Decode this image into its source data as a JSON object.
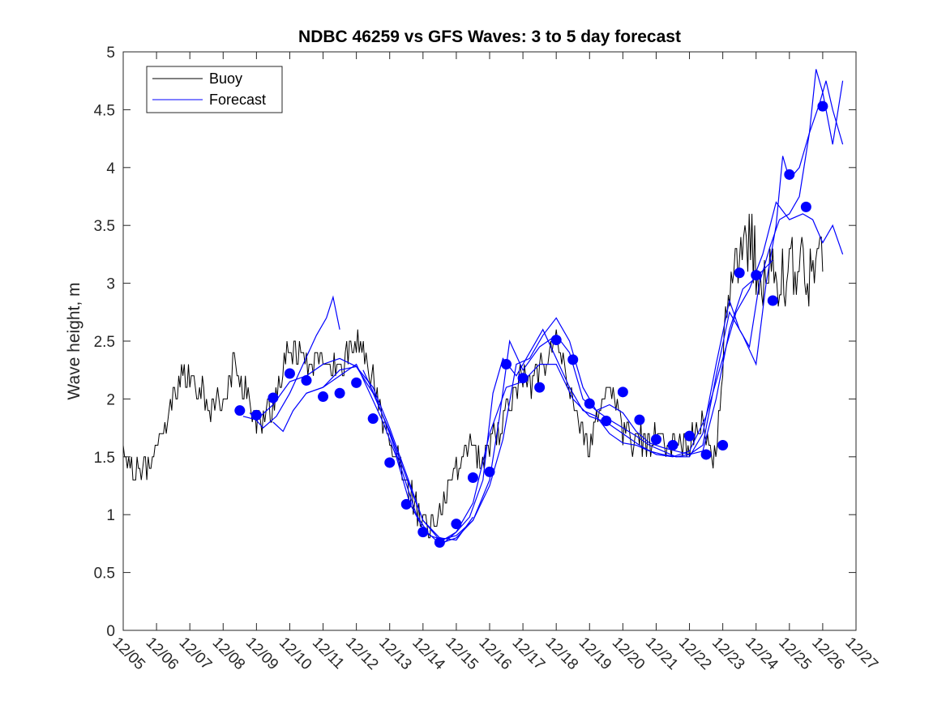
{
  "chart_data": {
    "type": "line",
    "title": "NDBC 46259 vs GFS Waves: 3 to 5 day forecast",
    "xlabel": "",
    "ylabel": "Wave height, m",
    "x_unit": "days since 12/05",
    "xlim": [
      0,
      22
    ],
    "ylim": [
      0,
      5
    ],
    "yticks": [
      0,
      0.5,
      1,
      1.5,
      2,
      2.5,
      3,
      3.5,
      4,
      4.5,
      5
    ],
    "yticklabels": [
      "0",
      "0.5",
      "1",
      "1.5",
      "2",
      "2.5",
      "3",
      "3.5",
      "4",
      "4.5",
      "5"
    ],
    "xticks": [
      0,
      1,
      2,
      3,
      4,
      5,
      6,
      7,
      8,
      9,
      10,
      11,
      12,
      13,
      14,
      15,
      16,
      17,
      18,
      19,
      20,
      21,
      22
    ],
    "xticklabels": [
      "12/05",
      "12/06",
      "12/07",
      "12/08",
      "12/09",
      "12/10",
      "12/11",
      "12/12",
      "12/13",
      "12/14",
      "12/15",
      "12/16",
      "12/17",
      "12/18",
      "12/19",
      "12/20",
      "12/21",
      "12/22",
      "12/23",
      "12/24",
      "12/25",
      "12/26",
      "12/27"
    ],
    "legend": {
      "location": "top-left",
      "entries": [
        "Buoy",
        "Forecast"
      ]
    },
    "colors": {
      "buoy": "#000000",
      "forecast": "#0000ff",
      "axis": "#262626"
    },
    "buoy_anchors": [
      [
        0.0,
        1.5
      ],
      [
        0.3,
        1.4
      ],
      [
        0.6,
        1.35
      ],
      [
        0.9,
        1.45
      ],
      [
        1.2,
        1.7
      ],
      [
        1.5,
        2.0
      ],
      [
        1.8,
        2.2
      ],
      [
        2.1,
        2.15
      ],
      [
        2.4,
        2.05
      ],
      [
        2.7,
        1.9
      ],
      [
        3.0,
        2.05
      ],
      [
        3.3,
        2.3
      ],
      [
        3.6,
        2.15
      ],
      [
        3.9,
        1.85
      ],
      [
        4.2,
        1.85
      ],
      [
        4.5,
        1.95
      ],
      [
        4.8,
        2.3
      ],
      [
        5.0,
        2.45
      ],
      [
        5.3,
        2.4
      ],
      [
        5.6,
        2.3
      ],
      [
        5.9,
        2.25
      ],
      [
        6.2,
        2.3
      ],
      [
        6.5,
        2.2
      ],
      [
        6.8,
        2.45
      ],
      [
        7.0,
        2.5
      ],
      [
        7.3,
        2.35
      ],
      [
        7.5,
        2.15
      ],
      [
        7.7,
        1.9
      ],
      [
        8.0,
        1.7
      ],
      [
        8.3,
        1.45
      ],
      [
        8.6,
        1.2
      ],
      [
        8.9,
        1.0
      ],
      [
        9.2,
        0.92
      ],
      [
        9.5,
        1.0
      ],
      [
        9.8,
        1.2
      ],
      [
        10.1,
        1.4
      ],
      [
        10.4,
        1.65
      ],
      [
        10.7,
        1.45
      ],
      [
        11.0,
        1.55
      ],
      [
        11.3,
        1.75
      ],
      [
        11.6,
        1.95
      ],
      [
        11.9,
        2.2
      ],
      [
        12.2,
        2.1
      ],
      [
        12.5,
        2.25
      ],
      [
        12.8,
        2.4
      ],
      [
        13.1,
        2.45
      ],
      [
        13.4,
        2.1
      ],
      [
        13.7,
        1.7
      ],
      [
        14.0,
        1.6
      ],
      [
        14.3,
        1.85
      ],
      [
        14.6,
        2.1
      ],
      [
        14.9,
        1.8
      ],
      [
        15.2,
        1.65
      ],
      [
        15.5,
        1.7
      ],
      [
        15.8,
        1.55
      ],
      [
        16.1,
        1.75
      ],
      [
        16.4,
        1.6
      ],
      [
        16.7,
        1.65
      ],
      [
        17.0,
        1.6
      ],
      [
        17.3,
        1.85
      ],
      [
        17.6,
        1.55
      ],
      [
        17.8,
        1.5
      ],
      [
        18.0,
        2.3
      ],
      [
        18.2,
        2.9
      ],
      [
        18.5,
        3.2
      ],
      [
        18.8,
        3.4
      ],
      [
        19.1,
        3.0
      ],
      [
        19.4,
        3.2
      ],
      [
        19.7,
        3.1
      ],
      [
        20.0,
        3.05
      ],
      [
        20.3,
        3.25
      ],
      [
        20.6,
        3.1
      ],
      [
        20.9,
        3.3
      ],
      [
        21.0,
        3.0
      ]
    ],
    "forecast_segments": [
      [
        [
          3.6,
          1.85
        ],
        [
          4.0,
          1.82
        ],
        [
          4.5,
          1.95
        ],
        [
          5.0,
          2.15
        ],
        [
          5.5,
          2.2
        ],
        [
          6.0,
          2.3
        ],
        [
          6.5,
          2.35
        ],
        [
          7.0,
          2.28
        ],
        [
          7.5,
          2.05
        ],
        [
          8.0,
          1.72
        ],
        [
          8.5,
          1.32
        ],
        [
          9.0,
          0.95
        ],
        [
          9.5,
          0.8
        ],
        [
          10.0,
          0.78
        ],
        [
          10.5,
          0.98
        ]
      ],
      [
        [
          3.8,
          1.88
        ],
        [
          4.2,
          1.75
        ],
        [
          4.6,
          1.85
        ],
        [
          5.0,
          2.05
        ],
        [
          5.4,
          2.3
        ],
        [
          5.8,
          2.55
        ],
        [
          6.1,
          2.7
        ],
        [
          6.3,
          2.88
        ],
        [
          6.5,
          2.6
        ]
      ],
      [
        [
          4.5,
          1.8
        ],
        [
          4.8,
          1.72
        ],
        [
          5.1,
          1.9
        ],
        [
          5.5,
          2.05
        ],
        [
          6.0,
          2.1
        ],
        [
          6.5,
          2.2
        ],
        [
          7.0,
          2.3
        ],
        [
          7.4,
          2.05
        ],
        [
          7.8,
          1.8
        ],
        [
          8.2,
          1.5
        ],
        [
          8.6,
          1.1
        ],
        [
          9.0,
          0.88
        ],
        [
          9.5,
          0.75
        ],
        [
          10.0,
          0.8
        ],
        [
          10.5,
          0.95
        ],
        [
          11.0,
          1.25
        ],
        [
          11.4,
          1.65
        ],
        [
          11.8,
          2.3
        ],
        [
          12.2,
          2.35
        ],
        [
          12.6,
          2.55
        ],
        [
          13.0,
          2.7
        ],
        [
          13.4,
          2.5
        ],
        [
          13.8,
          2.1
        ],
        [
          14.2,
          1.9
        ],
        [
          14.6,
          1.95
        ],
        [
          15.0,
          1.88
        ],
        [
          15.4,
          1.72
        ],
        [
          15.8,
          1.62
        ],
        [
          16.2,
          1.58
        ],
        [
          16.6,
          1.55
        ],
        [
          17.0,
          1.52
        ],
        [
          17.4,
          1.55
        ],
        [
          17.8,
          2.0
        ],
        [
          18.2,
          2.6
        ],
        [
          18.6,
          2.95
        ],
        [
          19.0,
          3.05
        ],
        [
          19.5,
          3.2
        ]
      ],
      [
        [
          5.5,
          2.05
        ],
        [
          6.0,
          2.1
        ],
        [
          6.5,
          2.25
        ],
        [
          7.0,
          2.28
        ],
        [
          7.5,
          2.1
        ],
        [
          8.0,
          1.75
        ],
        [
          8.5,
          1.35
        ],
        [
          9.0,
          0.95
        ],
        [
          9.5,
          0.78
        ],
        [
          10.0,
          0.82
        ],
        [
          10.5,
          0.95
        ],
        [
          11.0,
          1.3
        ],
        [
          11.3,
          1.85
        ],
        [
          11.6,
          2.5
        ],
        [
          12.0,
          2.25
        ],
        [
          12.5,
          2.45
        ],
        [
          13.0,
          2.55
        ],
        [
          13.4,
          2.4
        ],
        [
          13.8,
          2.0
        ],
        [
          14.2,
          1.9
        ],
        [
          14.6,
          1.82
        ],
        [
          15.0,
          1.75
        ],
        [
          15.4,
          1.68
        ],
        [
          15.8,
          1.6
        ],
        [
          16.2,
          1.55
        ],
        [
          16.6,
          1.5
        ],
        [
          17.0,
          1.52
        ],
        [
          17.4,
          1.6
        ],
        [
          17.8,
          2.2
        ],
        [
          18.2,
          2.75
        ],
        [
          18.6,
          2.55
        ],
        [
          19.0,
          2.3
        ],
        [
          19.3,
          3.0
        ],
        [
          19.6,
          3.5
        ],
        [
          19.8,
          4.1
        ],
        [
          20.0,
          3.9
        ],
        [
          20.3,
          4.0
        ],
        [
          20.6,
          4.3
        ],
        [
          20.9,
          4.55
        ],
        [
          21.1,
          4.75
        ],
        [
          21.3,
          4.5
        ],
        [
          21.6,
          4.2
        ]
      ],
      [
        [
          7.2,
          2.25
        ],
        [
          7.6,
          2.0
        ],
        [
          8.0,
          1.7
        ],
        [
          8.4,
          1.35
        ],
        [
          8.8,
          1.0
        ],
        [
          9.2,
          0.82
        ],
        [
          9.6,
          0.78
        ],
        [
          10.0,
          0.85
        ],
        [
          10.4,
          0.98
        ],
        [
          10.8,
          1.3
        ],
        [
          11.1,
          2.05
        ],
        [
          11.4,
          2.35
        ],
        [
          11.8,
          2.2
        ],
        [
          12.2,
          2.4
        ],
        [
          12.6,
          2.6
        ],
        [
          13.0,
          2.35
        ],
        [
          13.4,
          2.1
        ],
        [
          13.8,
          1.9
        ],
        [
          14.2,
          1.85
        ],
        [
          14.6,
          1.7
        ],
        [
          15.0,
          1.62
        ],
        [
          15.4,
          1.6
        ],
        [
          15.8,
          1.55
        ],
        [
          16.2,
          1.52
        ],
        [
          16.6,
          1.5
        ],
        [
          17.0,
          1.5
        ],
        [
          17.4,
          1.7
        ],
        [
          17.8,
          2.3
        ],
        [
          18.2,
          2.85
        ],
        [
          18.5,
          2.6
        ],
        [
          18.8,
          2.45
        ],
        [
          19.1,
          3.0
        ],
        [
          19.4,
          3.3
        ],
        [
          19.7,
          3.55
        ],
        [
          20.0,
          3.6
        ],
        [
          20.3,
          3.75
        ],
        [
          20.6,
          4.3
        ],
        [
          20.8,
          4.85
        ],
        [
          21.0,
          4.65
        ],
        [
          21.3,
          4.2
        ],
        [
          21.6,
          4.75
        ]
      ],
      [
        [
          9.6,
          0.75
        ],
        [
          10.0,
          0.85
        ],
        [
          10.5,
          1.1
        ],
        [
          11.0,
          1.7
        ],
        [
          11.5,
          2.1
        ],
        [
          12.0,
          2.15
        ],
        [
          12.5,
          2.3
        ],
        [
          13.0,
          2.3
        ],
        [
          13.5,
          2.0
        ],
        [
          14.0,
          1.85
        ],
        [
          14.5,
          1.8
        ],
        [
          15.0,
          1.7
        ],
        [
          15.5,
          1.6
        ],
        [
          16.0,
          1.52
        ],
        [
          16.5,
          1.5
        ],
        [
          17.0,
          1.55
        ],
        [
          17.5,
          1.85
        ],
        [
          18.0,
          2.35
        ],
        [
          18.4,
          2.75
        ],
        [
          18.8,
          2.95
        ],
        [
          19.2,
          3.25
        ],
        [
          19.6,
          3.7
        ],
        [
          20.0,
          3.55
        ],
        [
          20.4,
          3.6
        ],
        [
          20.7,
          3.55
        ],
        [
          21.0,
          3.35
        ],
        [
          21.3,
          3.5
        ],
        [
          21.6,
          3.25
        ]
      ]
    ],
    "forecast_points": {
      "x": [
        3.5,
        4.0,
        4.5,
        5.0,
        5.5,
        6.0,
        6.5,
        7.0,
        7.5,
        8.0,
        8.5,
        9.0,
        9.5,
        10.0,
        10.5,
        11.0,
        11.5,
        12.0,
        12.5,
        13.0,
        13.5,
        14.0,
        14.5,
        15.0,
        15.5,
        16.0,
        16.5,
        17.0,
        17.5,
        18.0,
        18.5,
        19.0,
        19.5,
        20.0,
        20.5,
        21.0
      ],
      "y": [
        1.9,
        1.86,
        2.01,
        2.22,
        2.16,
        2.02,
        2.05,
        2.14,
        1.83,
        1.45,
        1.09,
        0.85,
        0.76,
        0.92,
        1.32,
        1.37,
        2.3,
        2.18,
        2.1,
        2.51,
        2.34,
        1.96,
        1.81,
        2.06,
        1.82,
        1.65,
        1.6,
        1.68,
        1.52,
        1.6,
        3.09,
        3.07,
        2.85,
        3.94,
        3.66,
        4.53
      ]
    }
  }
}
